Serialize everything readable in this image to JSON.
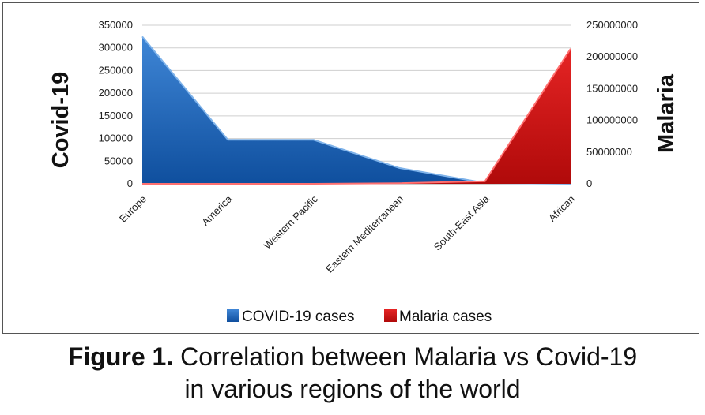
{
  "caption": {
    "label": "Figure 1.",
    "line1": "Correlation between Malaria vs Covid-19",
    "line2": "in various regions of the world"
  },
  "chart_data": {
    "type": "area",
    "categories": [
      "Europe",
      "America",
      "Western Pacific",
      "Eastern Mediterranean",
      "South-East Asia",
      "African"
    ],
    "series": [
      {
        "name": "COVID-19 cases",
        "axis": "left",
        "color": "#1f63b3",
        "values": [
          325000,
          97000,
          97000,
          35000,
          2000,
          0
        ]
      },
      {
        "name": "Malaria cases",
        "axis": "right",
        "color": "#cc1111",
        "values": [
          0,
          0,
          0,
          1000000,
          4000000,
          213000000
        ]
      }
    ],
    "ylabel": "Covid-19",
    "y2label": "Malaria",
    "ylim": [
      0,
      350000
    ],
    "y2lim": [
      0,
      250000000
    ],
    "yticks": [
      "0",
      "50000",
      "100000",
      "150000",
      "200000",
      "250000",
      "300000",
      "350000"
    ],
    "y2ticks": [
      "0",
      "50000000",
      "100000000",
      "150000000",
      "200000000",
      "250000000"
    ],
    "grid": true,
    "legend": "bottom"
  }
}
